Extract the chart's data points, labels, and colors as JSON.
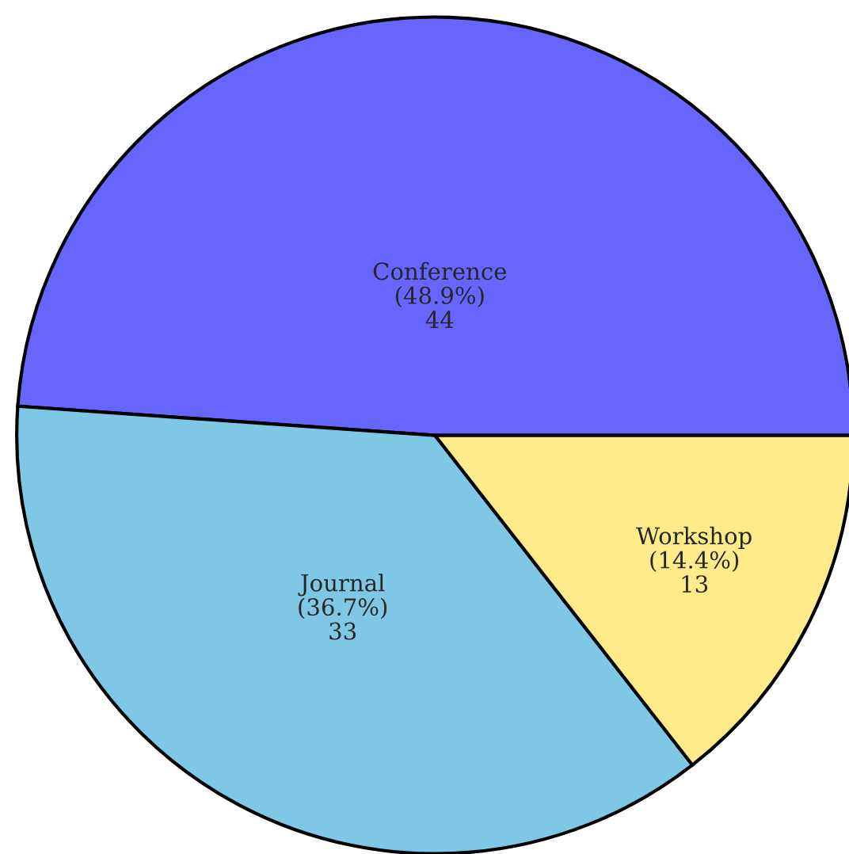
{
  "chart_data": {
    "type": "pie",
    "categories": [
      "Conference",
      "Journal",
      "Workshop"
    ],
    "values": [
      44,
      33,
      13
    ],
    "colors": [
      "#6666ff",
      "#7ec8e6",
      "#ffeb8a"
    ],
    "value_labels": [
      "(48.9%)\n44",
      "(36.7%)\n33",
      "(14.4%)\n13"
    ]
  }
}
